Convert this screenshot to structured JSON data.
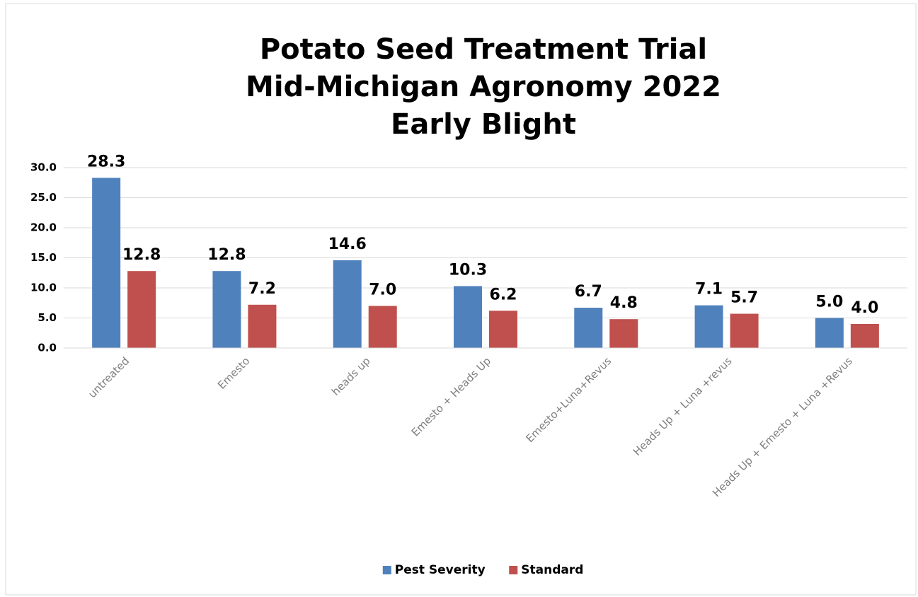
{
  "chart_data": {
    "type": "bar",
    "title": [
      "Potato Seed Treatment Trial",
      "Mid-Michigan Agronomy 2022",
      "Early Blight"
    ],
    "categories": [
      "untreated",
      "Emesto",
      "heads up",
      "Emesto + Heads Up",
      "Emesto+Luna+Revus",
      "Heads Up + Luna +revus",
      "Heads Up + Emesto + Luna +Revus"
    ],
    "series": [
      {
        "name": "Pest Severity",
        "color": "#4f81bd",
        "values": [
          28.3,
          12.8,
          14.6,
          10.3,
          6.7,
          7.1,
          5.0
        ],
        "value_labels": [
          "28.3",
          "12.8",
          "14.6",
          "10.3",
          "6.7",
          "7.1",
          "5.0"
        ]
      },
      {
        "name": "Standard",
        "color": "#c0504d",
        "values": [
          12.8,
          7.2,
          7.0,
          6.2,
          4.8,
          5.7,
          4.0
        ],
        "value_labels": [
          "12.8",
          "7.2",
          "7.0",
          "6.2",
          "4.8",
          "5.7",
          "4.0"
        ]
      }
    ],
    "ylim": [
      0,
      30
    ],
    "yticks": [
      {
        "value": 0,
        "label": "0.0"
      },
      {
        "value": 5,
        "label": "5.0"
      },
      {
        "value": 10,
        "label": "10.0"
      },
      {
        "value": 15,
        "label": "15.0"
      },
      {
        "value": 20,
        "label": "20.0"
      },
      {
        "value": 25,
        "label": "25.0"
      },
      {
        "value": 30,
        "label": "30.0"
      }
    ],
    "grid": true,
    "legend": "bottom"
  }
}
